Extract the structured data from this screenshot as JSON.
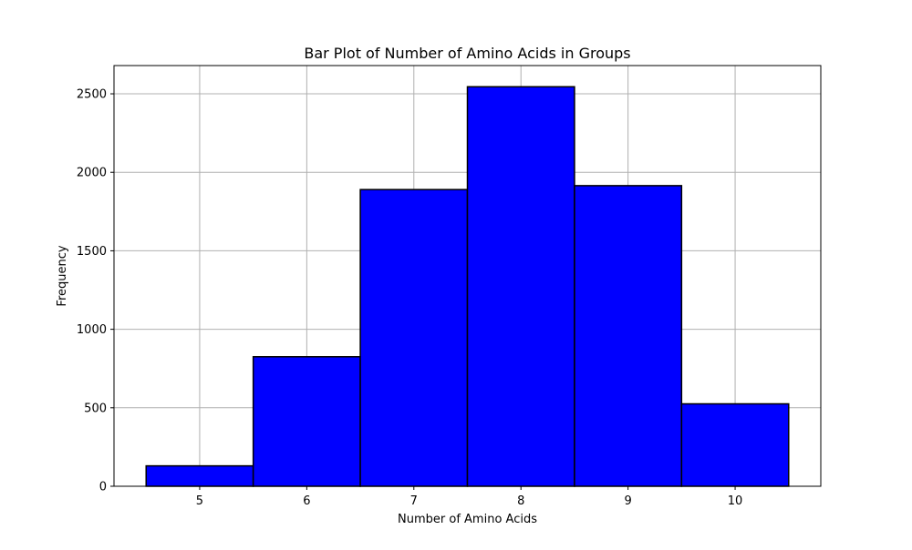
{
  "chart_data": {
    "type": "bar",
    "title": "Bar Plot of Number of Amino Acids in Groups",
    "xlabel": "Number of Amino Acids",
    "ylabel": "Frequency",
    "categories": [
      5,
      6,
      7,
      8,
      9,
      10
    ],
    "values": [
      130,
      825,
      1890,
      2545,
      1915,
      525
    ],
    "x_tick_labels": [
      "5",
      "6",
      "7",
      "8",
      "9",
      "10"
    ],
    "y_ticks": [
      0,
      500,
      1000,
      1500,
      2000,
      2500
    ],
    "y_tick_labels": [
      "0",
      "500",
      "1000",
      "1500",
      "2000",
      "2500"
    ],
    "xlim": [
      4.2,
      10.8
    ],
    "ylim": [
      0,
      2680
    ],
    "bar_width": 1,
    "grid": true,
    "legend": "none",
    "colors": {
      "bar_fill": "#0000ff",
      "bar_edge": "#000000",
      "grid": "#b0b0b0",
      "axes": "#000000"
    }
  }
}
